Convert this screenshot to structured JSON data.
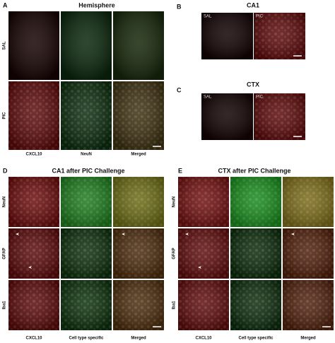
{
  "panels": [
    {
      "label": "A",
      "title": "Hemisphere",
      "rows": [
        "SAL",
        "PIC"
      ],
      "columns": [
        "CXCL10",
        "NeuN",
        "Merged"
      ]
    },
    {
      "label": "B",
      "title": "CA1",
      "insets": [
        "SAL",
        "PIC"
      ]
    },
    {
      "label": "C",
      "title": "CTX",
      "insets": [
        "SAL",
        "PIC"
      ]
    },
    {
      "label": "D",
      "title": "CA1 after PIC Challenge",
      "rows": [
        "NeuN",
        "GFAP",
        "Iba1"
      ],
      "columns": [
        "CXCL10",
        "Cell type specific",
        "Merged"
      ]
    },
    {
      "label": "E",
      "title": "CTX after PIC Challenge",
      "rows": [
        "NeuN",
        "GFAP",
        "Iba1"
      ],
      "columns": [
        "CXCL10",
        "Cell type specific",
        "Merged"
      ]
    }
  ]
}
